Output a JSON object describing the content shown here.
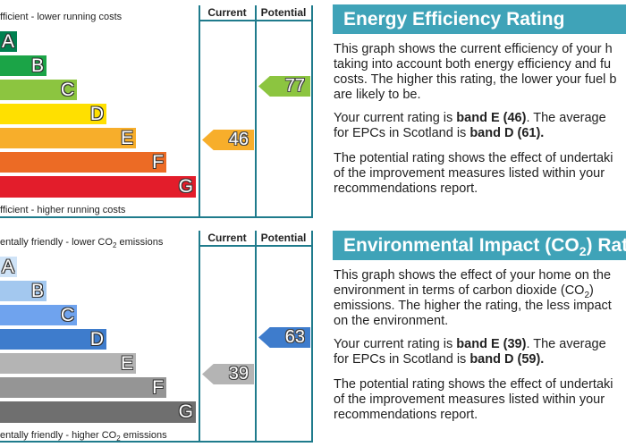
{
  "energy": {
    "header_current": "Current",
    "header_potential": "Potential",
    "top_label": "fficient - lower running costs",
    "bottom_label": "fficient - higher running costs",
    "bands": [
      {
        "letter": "A",
        "color": "#00804f"
      },
      {
        "letter": "B",
        "color": "#1ba447"
      },
      {
        "letter": "C",
        "color": "#8cc540"
      },
      {
        "letter": "D",
        "color": "#ffe000"
      },
      {
        "letter": "E",
        "color": "#f7ae2b"
      },
      {
        "letter": "F",
        "color": "#ec6b25"
      },
      {
        "letter": "G",
        "color": "#e31d2b"
      }
    ],
    "current": {
      "value": "46",
      "color": "#f7ae2b"
    },
    "potential": {
      "value": "77",
      "color": "#8cc540"
    },
    "title": "Energy Efficiency Rating",
    "p1": [
      "This graph shows the current efficiency of your h",
      "taking into account both energy efficiency and fu",
      "costs. The higher this rating, the lower your fuel b",
      "are likely to be."
    ],
    "p2a": "Your current rating is ",
    "p2b": "band E (46)",
    "p2c": ". The average",
    "p2d": "for EPCs in Scotland is ",
    "p2e": "band D (61).",
    "p3": [
      "The potential rating shows the effect of undertaki",
      "of the improvement measures listed within your",
      "recommendations report."
    ]
  },
  "environment": {
    "header_current": "Current",
    "header_potential": "Potential",
    "top_label_a": "entally friendly - lower CO",
    "top_label_b": " emissions",
    "bottom_label_a": "entally friendly - higher CO",
    "bottom_label_b": " emissions",
    "sub2": "2",
    "bands": [
      {
        "letter": "A",
        "color": "#cfe3f7"
      },
      {
        "letter": "B",
        "color": "#a3c8ef"
      },
      {
        "letter": "C",
        "color": "#6fa3ee"
      },
      {
        "letter": "D",
        "color": "#3e7ccc"
      },
      {
        "letter": "E",
        "color": "#b4b4b4"
      },
      {
        "letter": "F",
        "color": "#959595"
      },
      {
        "letter": "G",
        "color": "#6f6f6f"
      }
    ],
    "current": {
      "value": "39",
      "color": "#b4b4b4"
    },
    "potential": {
      "value": "63",
      "color": "#3e7ccc"
    },
    "title_a": "Environmental Impact (CO",
    "title_b": ") Rati",
    "p1a": "This graph shows the effect of your home on the",
    "p1b": "environment in terms of carbon dioxide (CO",
    "p1c": ")",
    "p1d": "emissions. The higher the rating, the less impact",
    "p1e": "on the environment.",
    "p2a": "Your current rating is ",
    "p2b": "band E (39)",
    "p2c": ". The average",
    "p2d": "for EPCs in Scotland is ",
    "p2e": "band D (59).",
    "p3": [
      "The potential rating shows the effect of undertaki",
      "of the improvement measures listed within your",
      "recommendations report."
    ]
  }
}
